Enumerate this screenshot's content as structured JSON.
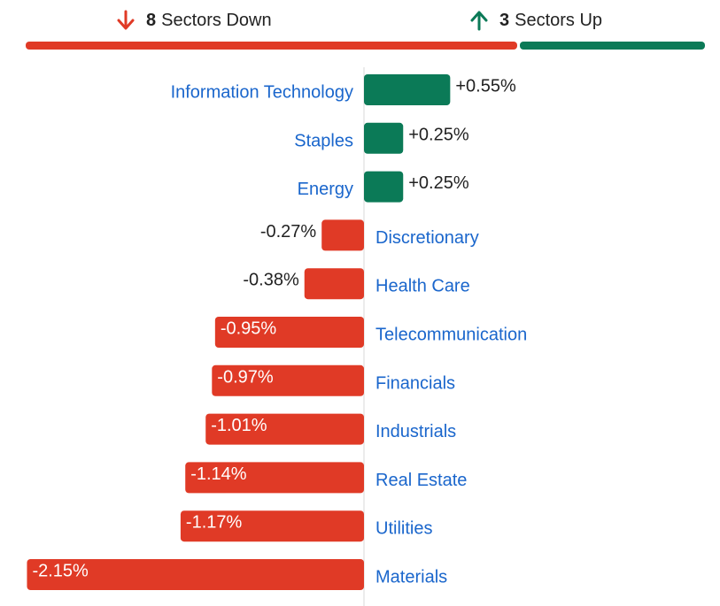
{
  "summary": {
    "down_count": "8",
    "down_label": "Sectors Down",
    "up_count": "3",
    "up_label": "Sectors Up",
    "down_icon": "arrow-down-icon",
    "up_icon": "arrow-up-icon"
  },
  "colors": {
    "positive": "#0b7a57",
    "negative": "#e03a26",
    "category_text": "#1a66cc",
    "value_text": "#222222",
    "axis": "#d8d8d8"
  },
  "chart_data": {
    "type": "bar",
    "orientation": "horizontal",
    "title": "",
    "xlabel": "",
    "ylabel": "",
    "unit": "%",
    "categories": [
      "Information Technology",
      "Staples",
      "Energy",
      "Discretionary",
      "Health Care",
      "Telecommunication",
      "Financials",
      "Industrials",
      "Real Estate",
      "Utilities",
      "Materials"
    ],
    "values": [
      0.55,
      0.25,
      0.25,
      -0.27,
      -0.38,
      -0.95,
      -0.97,
      -1.01,
      -1.14,
      -1.17,
      -2.15
    ],
    "value_labels": [
      "+0.55%",
      "+0.25%",
      "+0.25%",
      "-0.27%",
      "-0.38%",
      "-0.95%",
      "-0.97%",
      "-1.01%",
      "-1.14%",
      "-1.17%",
      "-2.15%"
    ],
    "grid": false,
    "legend": "none"
  }
}
